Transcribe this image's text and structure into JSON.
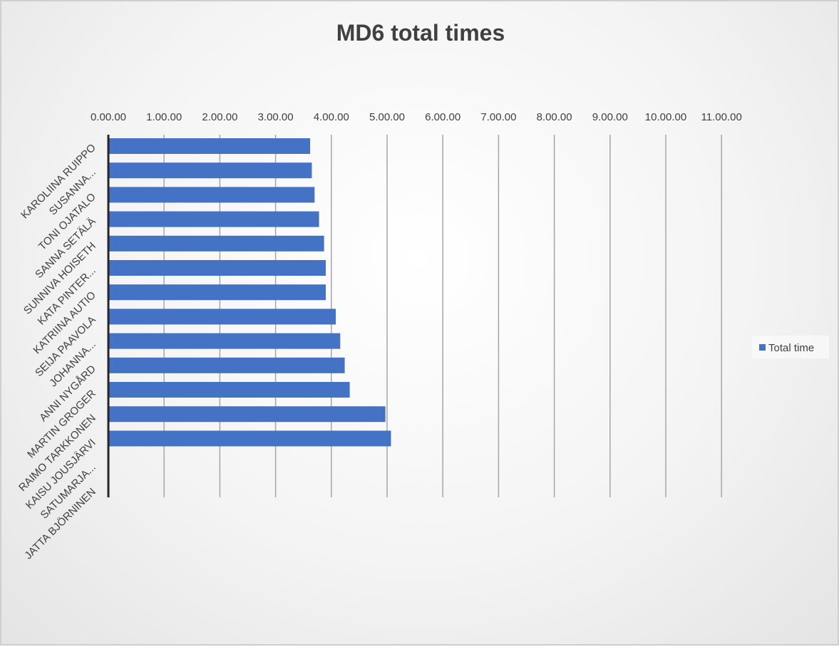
{
  "chart_data": {
    "type": "bar",
    "orientation": "horizontal",
    "title": "MD6 total times",
    "x_tick_labels": [
      "0.00.00",
      "1.00.00",
      "2.00.00",
      "3.00.00",
      "4.00.00",
      "5.00.00",
      "6.00.00",
      "7.00.00",
      "8.00.00",
      "9.00.00",
      "10.00.00",
      "11.00.00"
    ],
    "xlim": [
      0,
      11
    ],
    "x_axis_position": "top",
    "grid": true,
    "categories": [
      "KAROLIINA RUIPPO",
      "SUSANNA...",
      "TONI OJATALO",
      "SANNA SETÄLÄ",
      "SUNNIVA HOISETH",
      "KATA PINTER...",
      "KATRIINA AUTIO",
      "SEIJA PAAVOLA",
      "JOHANNA...",
      "ANNI NYGÅRD",
      "MARTIN GROGER",
      "RAIMO TARKKONEN",
      "KAISU JOUSJÄRVI",
      "SATUMARJA...",
      "JATTA BJÖRNINEN"
    ],
    "series": [
      {
        "name": "Total time",
        "color": "#4472c4",
        "values": [
          3.62,
          3.65,
          3.7,
          3.78,
          3.87,
          3.9,
          3.9,
          4.08,
          4.16,
          4.24,
          4.33,
          4.97,
          5.07,
          null,
          null
        ]
      }
    ],
    "legend_position": "right"
  }
}
